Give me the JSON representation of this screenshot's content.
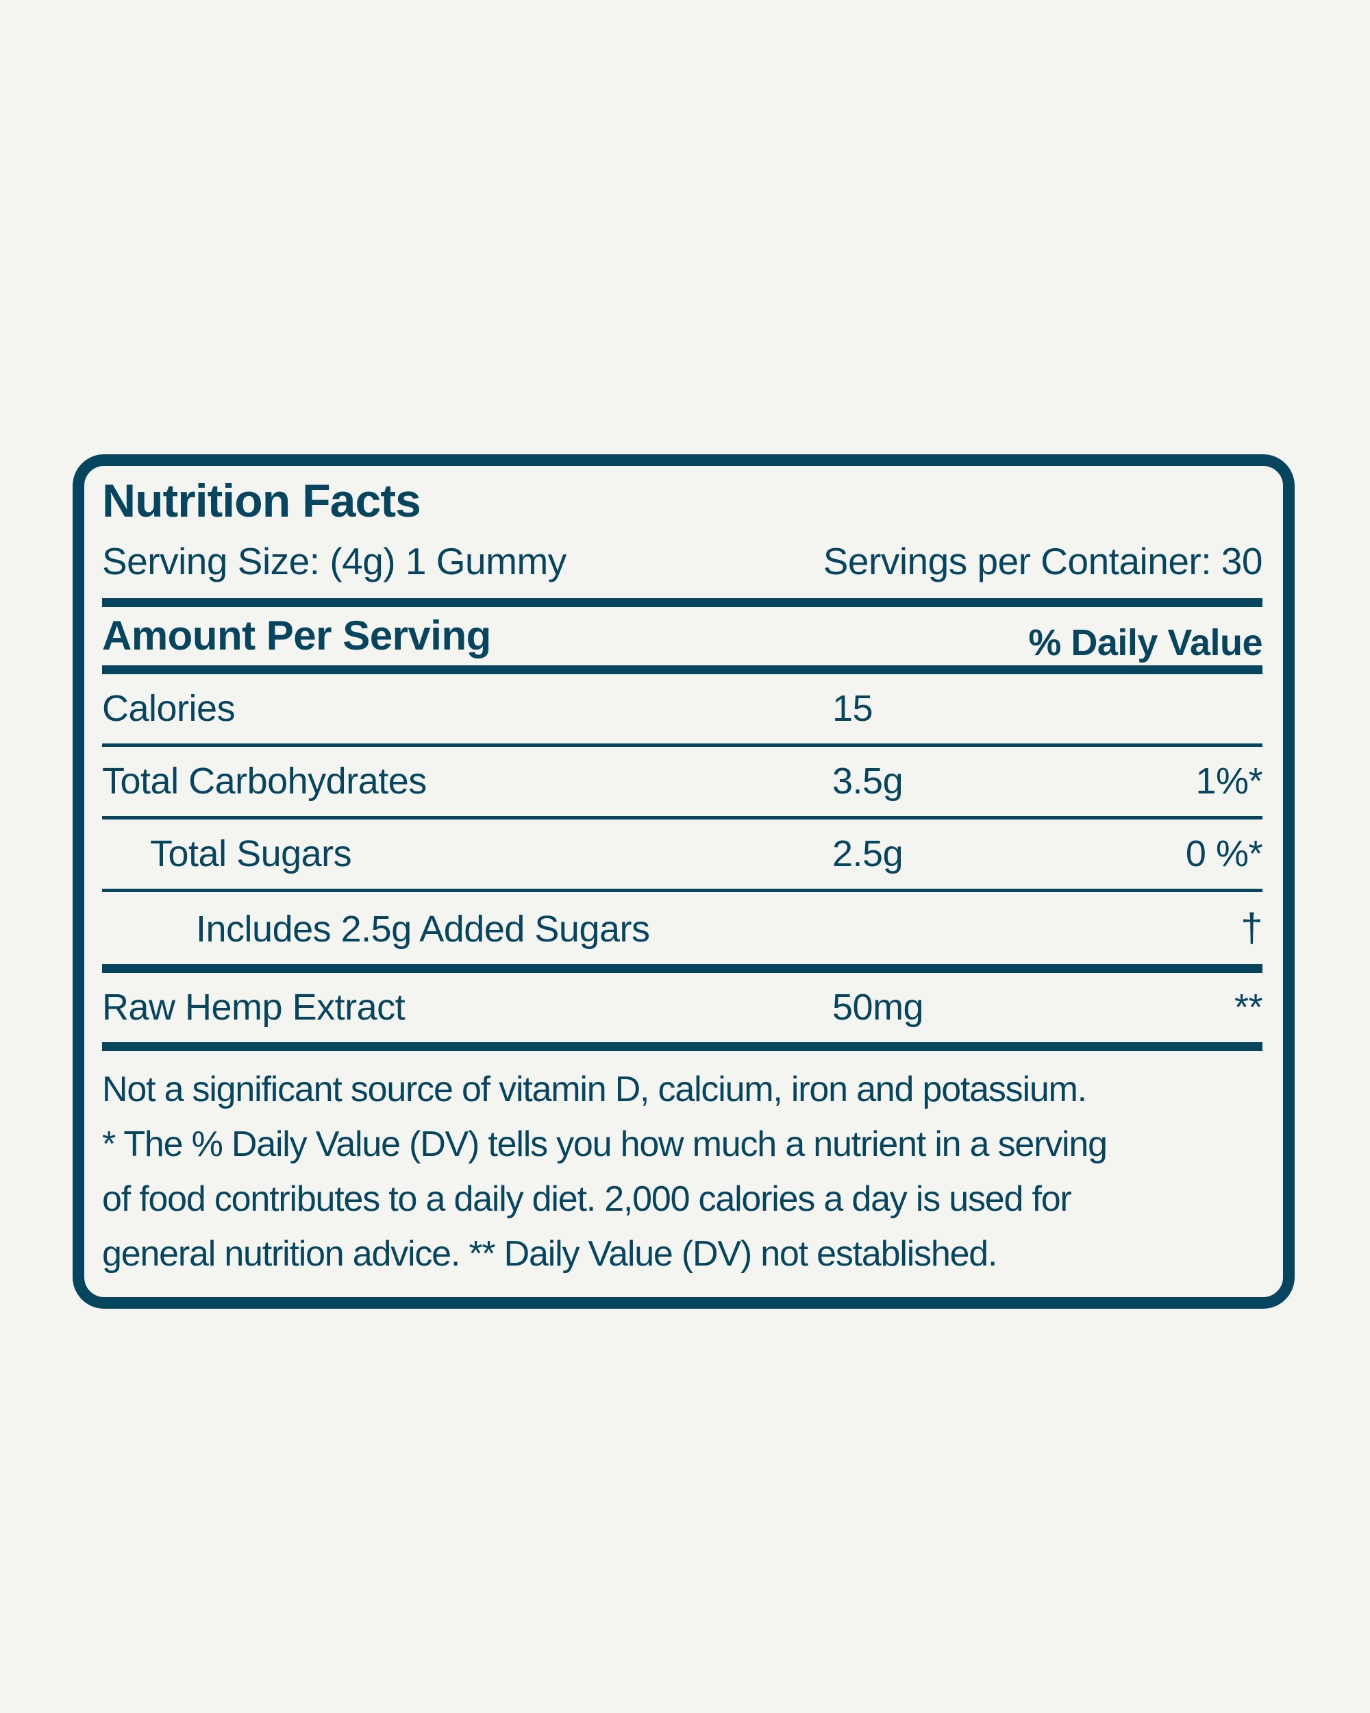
{
  "colors": {
    "ink": "#07455f",
    "background": "#f4f5f0"
  },
  "label": {
    "title": "Nutrition Facts",
    "serving_size": "Serving Size: (4g) 1 Gummy",
    "servings_per_container": "Servings per Container: 30",
    "amount_per_serving": "Amount Per Serving",
    "daily_value_header": "% Daily Value",
    "rows": [
      {
        "name": "Calories",
        "value": "15",
        "dv": ""
      },
      {
        "name": "Total Carbohydrates",
        "value": "3.5g",
        "dv": "1%*"
      },
      {
        "name": "Total Sugars",
        "value": "2.5g",
        "dv": "0 %*"
      },
      {
        "name": "Includes 2.5g Added Sugars",
        "value": "",
        "dv": "†"
      },
      {
        "name": "Raw Hemp Extract",
        "value": "50mg",
        "dv": "**"
      }
    ],
    "footnote_lines": [
      "Not a significant source of vitamin D, calcium, iron and potassium.",
      "* The % Daily Value (DV) tells you how much a nutrient in a serving",
      "of food contributes to a daily diet. 2,000 calories a day is used for",
      "general nutrition advice.  ** Daily Value (DV) not established."
    ]
  }
}
